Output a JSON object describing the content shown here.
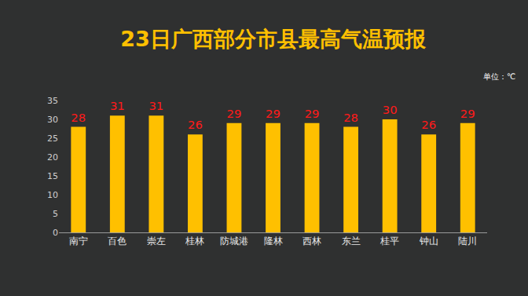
{
  "chart_data": {
    "type": "bar",
    "title": "23日广西部分市县最高气温预报",
    "annotations": [
      "单位：℃"
    ],
    "categories": [
      "南宁",
      "百色",
      "崇左",
      "桂林",
      "防城港",
      "隆林",
      "西林",
      "东兰",
      "桂平",
      "钟山",
      "陆川"
    ],
    "values": [
      28,
      31,
      31,
      26,
      29,
      29,
      29,
      28,
      30,
      26,
      29
    ],
    "color": "#FFC000",
    "ylim": [
      0,
      35
    ],
    "yticks": [
      0,
      5,
      10,
      15,
      20,
      25,
      30,
      35
    ],
    "grid": false,
    "data_labels": true
  }
}
